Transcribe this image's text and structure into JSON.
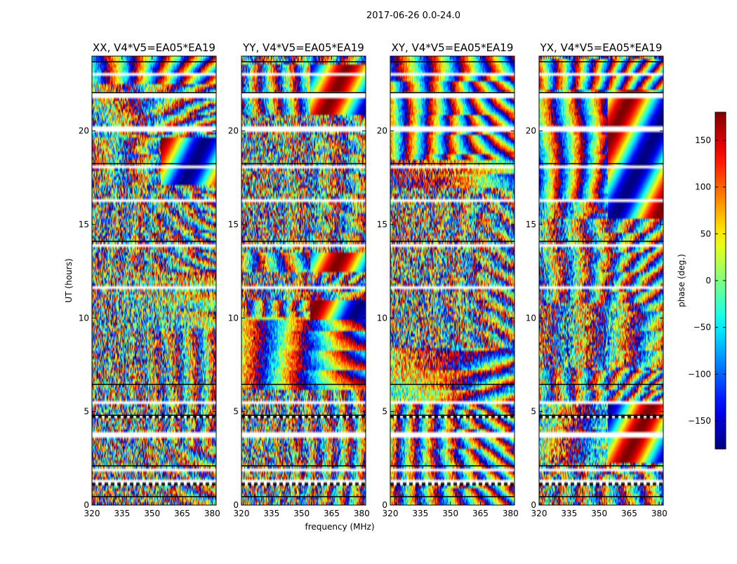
{
  "suptitle": "2017-06-26 0.0-24.0",
  "chart_data": {
    "type": "heatmap",
    "panels": [
      {
        "title": "XX, V4*V5=EA05*EA19",
        "seed": 11
      },
      {
        "title": "YY, V4*V5=EA05*EA19",
        "seed": 23
      },
      {
        "title": "XY, V4*V5=EA05*EA19",
        "seed": 37
      },
      {
        "title": "YX, V4*V5=EA05*EA19",
        "seed": 53
      }
    ],
    "xlabel": "frequency (MHz)",
    "ylabel": "UT (hours)",
    "xlim": [
      320,
      382
    ],
    "ylim": [
      0,
      24
    ],
    "xticks": [
      "320",
      "335",
      "350",
      "365",
      "380"
    ],
    "xtick_values": [
      320,
      335,
      350,
      365,
      380
    ],
    "yticks": [
      "0",
      "5",
      "10",
      "15",
      "20"
    ],
    "ytick_values": [
      0,
      5,
      10,
      15,
      20
    ],
    "colorbar": {
      "label": "phase (deg.)",
      "range": [
        -180,
        180
      ],
      "colormap": "jet",
      "tick_values": [
        -150,
        -100,
        -50,
        0,
        50,
        100,
        150
      ],
      "ticks": [
        "−150",
        "−100",
        "−50",
        "0",
        "50",
        "100",
        "150"
      ]
    },
    "data_gap_hours": [
      [
        0.3,
        0.45
      ],
      [
        1.05,
        1.4
      ],
      [
        1.9,
        2.1
      ],
      [
        3.75,
        3.95
      ],
      [
        4.7,
        4.8
      ],
      [
        5.45,
        5.6
      ],
      [
        6.3,
        6.45
      ],
      [
        11.7,
        11.85
      ],
      [
        13.95,
        14.1
      ],
      [
        16.3,
        16.45
      ],
      [
        18.1,
        18.25
      ],
      [
        20.1,
        20.25
      ],
      [
        21.9,
        22.05
      ],
      [
        23.05,
        23.15
      ],
      [
        23.55,
        23.7
      ]
    ]
  }
}
